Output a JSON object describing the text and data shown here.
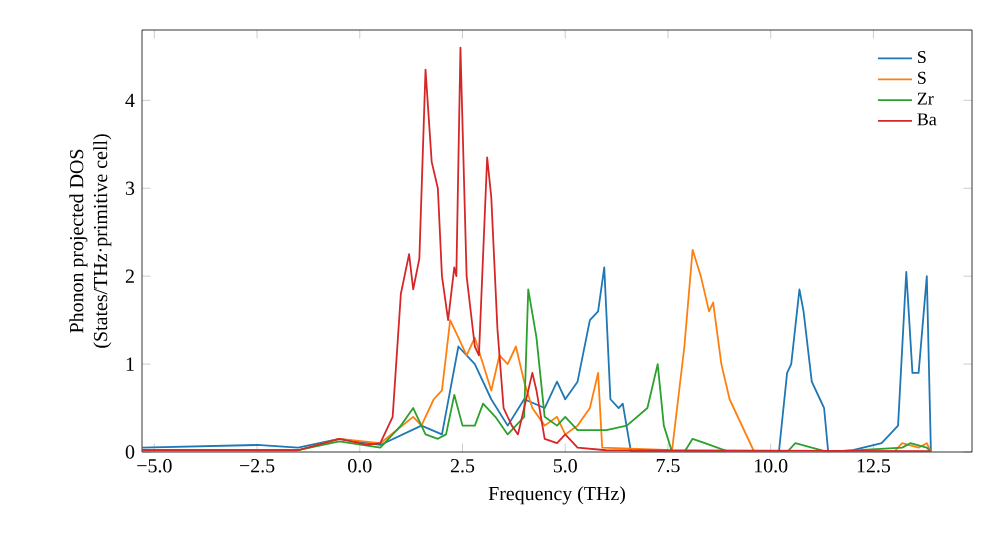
{
  "chart_data": {
    "type": "line",
    "xlabel": "Frequency (THz)",
    "ylabel": "Phonon projected DOS\n(States/THz·primitive cell)",
    "xlim": [
      -5.3,
      14.9
    ],
    "ylim": [
      0,
      4.8
    ],
    "xticks": [
      {
        "value": -5,
        "label": "−5.0"
      },
      {
        "value": -2.5,
        "label": "−2.5"
      },
      {
        "value": 0,
        "label": "0.0"
      },
      {
        "value": 2.5,
        "label": "2.5"
      },
      {
        "value": 5,
        "label": "5.0"
      },
      {
        "value": 7.5,
        "label": "7.5"
      },
      {
        "value": 10,
        "label": "10.0"
      },
      {
        "value": 12.5,
        "label": "12.5"
      }
    ],
    "yticks": [
      0,
      1,
      2,
      3,
      4
    ],
    "legend": "top right",
    "series": [
      {
        "name": "S",
        "color": "#1f77b4",
        "x": [
          -5.3,
          -2.5,
          -1.5,
          -0.5,
          0.5,
          1.5,
          2.0,
          2.4,
          2.8,
          3.2,
          3.6,
          4.0,
          4.5,
          4.8,
          5.0,
          5.3,
          5.6,
          5.8,
          5.95,
          6.1,
          6.3,
          6.4,
          6.6,
          10.2,
          10.4,
          10.5,
          10.7,
          10.8,
          11.0,
          11.2,
          11.3,
          11.4,
          12.0,
          12.7,
          13.1,
          13.3,
          13.45,
          13.6,
          13.8,
          13.9
        ],
        "values": [
          0.05,
          0.08,
          0.05,
          0.15,
          0.08,
          0.3,
          0.2,
          1.2,
          1.0,
          0.6,
          0.3,
          0.6,
          0.5,
          0.8,
          0.6,
          0.8,
          1.5,
          1.6,
          2.1,
          0.6,
          0.5,
          0.55,
          0.0,
          0.0,
          0.9,
          1.0,
          1.85,
          1.6,
          0.8,
          0.6,
          0.5,
          0.0,
          0.02,
          0.1,
          0.3,
          2.05,
          0.9,
          0.9,
          2.0,
          0.0
        ]
      },
      {
        "name": "S",
        "color": "#ff7f0e",
        "x": [
          -5.3,
          -1.5,
          -0.5,
          0.5,
          1.3,
          1.5,
          1.8,
          2.0,
          2.2,
          2.4,
          2.6,
          2.8,
          3.0,
          3.2,
          3.4,
          3.6,
          3.8,
          4.0,
          4.2,
          4.5,
          4.8,
          5.0,
          5.3,
          5.6,
          5.8,
          5.9,
          7.6,
          7.9,
          8.1,
          8.3,
          8.5,
          8.6,
          8.8,
          9.0,
          9.3,
          9.6,
          13.0,
          13.2,
          13.6,
          13.8,
          13.9
        ],
        "values": [
          0.02,
          0.02,
          0.15,
          0.1,
          0.4,
          0.3,
          0.6,
          0.7,
          1.5,
          1.3,
          1.1,
          1.3,
          1.0,
          0.7,
          1.1,
          1.0,
          1.2,
          0.8,
          0.5,
          0.3,
          0.4,
          0.2,
          0.3,
          0.5,
          0.9,
          0.05,
          0.02,
          1.2,
          2.3,
          2.0,
          1.6,
          1.7,
          1.0,
          0.6,
          0.3,
          0.0,
          0.0,
          0.1,
          0.05,
          0.1,
          0.0
        ]
      },
      {
        "name": "Zr",
        "color": "#2ca02c",
        "x": [
          -5.3,
          -1.5,
          -0.5,
          0.5,
          1.0,
          1.3,
          1.6,
          1.9,
          2.1,
          2.3,
          2.5,
          2.8,
          3.0,
          3.3,
          3.6,
          3.8,
          4.0,
          4.1,
          4.3,
          4.5,
          4.8,
          5.0,
          5.3,
          6.0,
          6.5,
          7.0,
          7.25,
          7.4,
          7.6,
          7.9,
          8.1,
          8.4,
          9.0,
          10.4,
          10.6,
          11.0,
          11.4,
          13.2,
          13.4,
          13.8,
          13.9
        ],
        "values": [
          0.02,
          0.02,
          0.12,
          0.05,
          0.3,
          0.5,
          0.2,
          0.15,
          0.2,
          0.65,
          0.3,
          0.3,
          0.55,
          0.4,
          0.2,
          0.3,
          0.4,
          1.85,
          1.3,
          0.4,
          0.3,
          0.4,
          0.25,
          0.25,
          0.3,
          0.5,
          1.0,
          0.3,
          0.0,
          0.0,
          0.15,
          0.1,
          0.0,
          0.0,
          0.1,
          0.05,
          0.0,
          0.05,
          0.1,
          0.05,
          0.0
        ]
      },
      {
        "name": "Ba",
        "color": "#d62728",
        "x": [
          -5.3,
          -1.5,
          -0.5,
          0.2,
          0.5,
          0.8,
          1.0,
          1.2,
          1.3,
          1.45,
          1.6,
          1.75,
          1.9,
          2.0,
          2.15,
          2.3,
          2.35,
          2.45,
          2.6,
          2.8,
          2.9,
          3.1,
          3.2,
          3.35,
          3.5,
          3.7,
          3.85,
          4.0,
          4.2,
          4.3,
          4.5,
          4.8,
          5.0,
          5.3,
          6.0,
          13.9
        ],
        "values": [
          0.02,
          0.02,
          0.15,
          0.08,
          0.1,
          0.4,
          1.8,
          2.25,
          1.85,
          2.2,
          4.35,
          3.3,
          3.0,
          2.0,
          1.5,
          2.1,
          2.0,
          4.6,
          2.0,
          1.2,
          1.1,
          3.35,
          2.9,
          1.4,
          0.5,
          0.3,
          0.2,
          0.5,
          0.9,
          0.7,
          0.15,
          0.1,
          0.2,
          0.05,
          0.02,
          0.01
        ]
      }
    ]
  }
}
